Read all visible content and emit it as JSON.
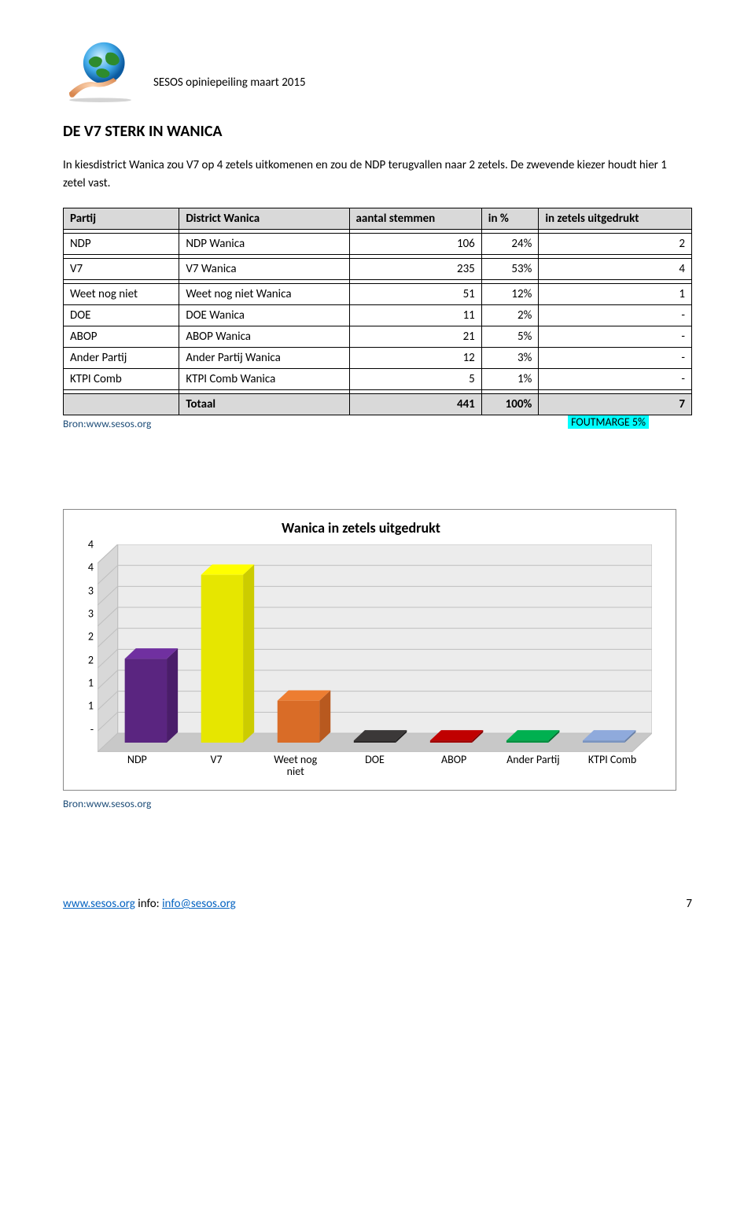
{
  "doc_subtitle": "SESOS opiniepeiling maart 2015",
  "title": "DE V7 STERK IN WANICA",
  "intro": "In kiesdistrict Wanica zou V7 op 4 zetels uitkomenen en zou de NDP terugvallen naar 2 zetels. De zwevende kiezer houdt hier 1 zetel vast.",
  "table": {
    "headers": [
      "Partij",
      "District Wanica",
      "aantal stemmen",
      "in %",
      "in zetels uitgedrukt"
    ],
    "rows": [
      {
        "p": "NDP",
        "d": "NDP Wanica",
        "n": "106",
        "pct": "24%",
        "z": "2",
        "gap_after": true
      },
      {
        "p": "V7",
        "d": "V7 Wanica",
        "n": "235",
        "pct": "53%",
        "z": "4",
        "gap_after": true
      },
      {
        "p": "Weet nog niet",
        "d": "Weet nog niet Wanica",
        "n": "51",
        "pct": "12%",
        "z": "1"
      },
      {
        "p": "DOE",
        "d": "DOE Wanica",
        "n": "11",
        "pct": "2%",
        "z": "-"
      },
      {
        "p": "ABOP",
        "d": "ABOP Wanica",
        "n": "21",
        "pct": "5%",
        "z": "-"
      },
      {
        "p": "Ander Partij",
        "d": "Ander Partij Wanica",
        "n": "12",
        "pct": "3%",
        "z": "-"
      },
      {
        "p": "KTPI Comb",
        "d": "KTPI Comb Wanica",
        "n": "5",
        "pct": "1%",
        "z": "-",
        "gap_after": true
      }
    ],
    "total": {
      "label": "Totaal",
      "n": "441",
      "pct": "100%",
      "z": "7"
    }
  },
  "bron_label": "Bron:www.sesos.org",
  "fout_label": "FOUTMARGE 5%",
  "chart": {
    "title": "Wanica in zetels uitgedrukt",
    "ymax": 4.5,
    "yticks": [
      "4",
      "4",
      "3",
      "3",
      "2",
      "2",
      "1",
      "1",
      "-"
    ],
    "ytick_vals": [
      4.5,
      4,
      3.5,
      3,
      2.5,
      2,
      1.5,
      1,
      0.5
    ],
    "categories": [
      "NDP",
      "V7",
      "Weet nog\nniet",
      "DOE",
      "ABOP",
      "Ander Partij",
      "KTPI Comb"
    ],
    "values": [
      2,
      4,
      1,
      0.05,
      0.05,
      0.05,
      0.05
    ],
    "colors": {
      "bar_top": [
        "#7030a0",
        "#ffff00",
        "#ed7d31",
        "#3b3838",
        "#c00000",
        "#00b050",
        "#8faadc"
      ],
      "bar_front": [
        "#5a2580",
        "#e6e600",
        "#d96c27",
        "#2b2828",
        "#a00000",
        "#009040",
        "#7a94c0"
      ],
      "bar_side": [
        "#4a1d6a",
        "#cccc00",
        "#b8591f",
        "#1f1d1d",
        "#800000",
        "#007030",
        "#6880a8"
      ]
    },
    "floor_color": "#c8c8c8",
    "backwall_color": "#ececec",
    "sidewall_color": "#d8d8d8",
    "grid_color": "#bfbfbf",
    "bg_color": "#ffffff"
  },
  "footer": {
    "left_link": "www.sesos.org",
    "left_text": " info: ",
    "left_mail": "info@sesos.org",
    "page": "7"
  }
}
